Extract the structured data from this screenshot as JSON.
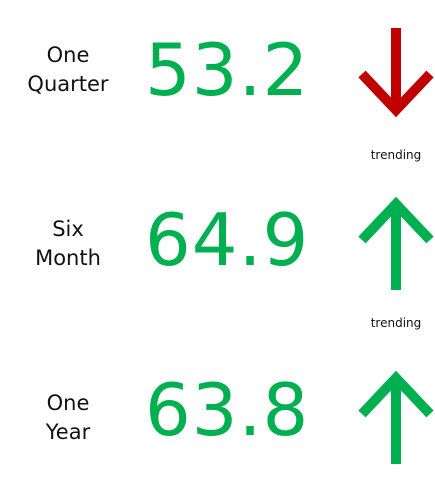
{
  "metrics": [
    {
      "label_line1": "One",
      "label_line2": "Quarter",
      "value": "53.2",
      "direction": "down",
      "color": "#00b050",
      "arrow_color": "#c00000",
      "arrow_icon": "arrow-down-icon"
    },
    {
      "label_line1": "Six",
      "label_line2": "Month",
      "value": "64.9",
      "direction": "up",
      "color": "#00b050",
      "arrow_color": "#00b050",
      "arrow_icon": "arrow-up-icon"
    },
    {
      "label_line1": "One",
      "label_line2": "Year",
      "value": "63.8",
      "direction": "up",
      "color": "#00b050",
      "arrow_color": "#00b050",
      "arrow_icon": "arrow-up-icon"
    }
  ],
  "trending_labels": [
    "trending",
    "trending"
  ]
}
